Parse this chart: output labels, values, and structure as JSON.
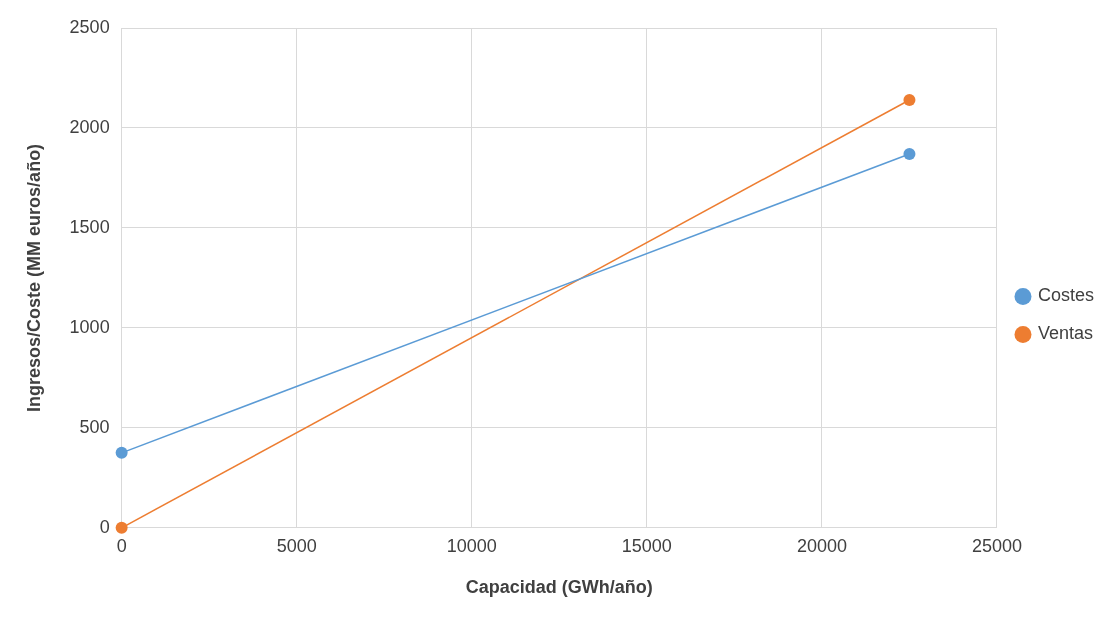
{
  "chart_data": {
    "type": "line",
    "xlabel": "Capacidad (GWh/año)",
    "ylabel": "Ingresos/Coste (MM euros/año)",
    "xlim": [
      0,
      25000
    ],
    "xticks": [
      0,
      5000,
      10000,
      15000,
      20000,
      25000
    ],
    "ylim": [
      0,
      2500
    ],
    "yticks": [
      0,
      500,
      1000,
      1500,
      2000,
      2500
    ],
    "x": [
      0,
      22500
    ],
    "grid": true,
    "legend": "right",
    "marker": "circle",
    "line_style": "solid",
    "series": [
      {
        "name": "Costes",
        "color": "#5b9bd5",
        "values": [
          375,
          1870
        ]
      },
      {
        "name": "Ventas",
        "color": "#ed7d31",
        "values": [
          0,
          2140
        ]
      }
    ]
  }
}
